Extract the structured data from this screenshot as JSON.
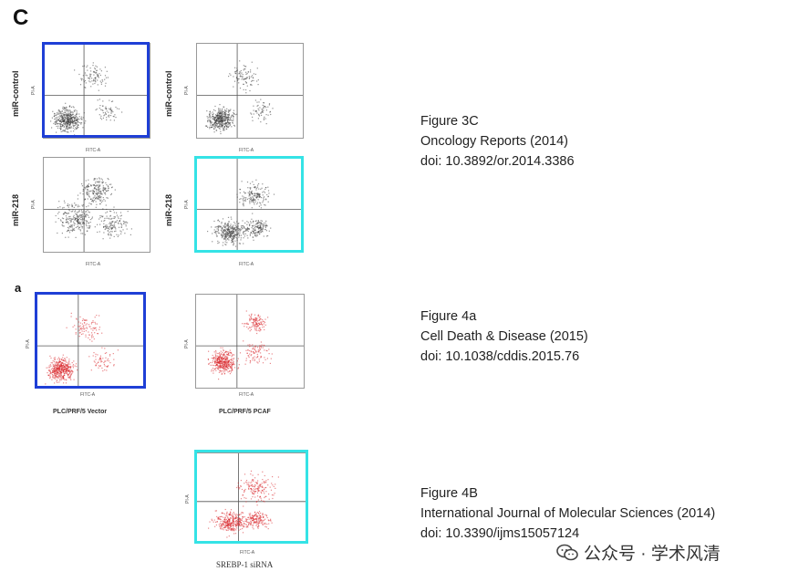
{
  "panel_c": {
    "letter": "C",
    "row_labels": [
      "miR-control",
      "miR-218"
    ],
    "axis_x": "FITC-A",
    "axis_y": "PI-A",
    "caption": [
      "Figure 3C",
      "Oncology Reports (2014)",
      "doi: 10.3892/or.2014.3386"
    ]
  },
  "panel_a": {
    "letter": "a",
    "plot_labels": [
      "PLC/PRF/5 Vector",
      "PLC/PRF/5 PCAF"
    ],
    "axis_x": "FITC-A",
    "axis_y": "PI-A",
    "caption": [
      "Figure 4a",
      "Cell Death & Disease (2015)",
      "doi: 10.1038/cddis.2015.76"
    ]
  },
  "panel_b": {
    "plot_label": "SREBP-1 siRNA",
    "axis_x": "FITC-A",
    "axis_y": "PI-A",
    "caption": [
      "Figure 4B",
      "International Journal of Molecular Sciences (2014)",
      "doi: 10.3390/ijms15057124"
    ]
  },
  "watermark": "公众号 · 学术风清",
  "colors": {
    "highlight_blue": "#1f3fd6",
    "highlight_cyan": "#35e3e6",
    "dots_gray": "#3c3c3c",
    "dots_red": "#d8242a"
  }
}
